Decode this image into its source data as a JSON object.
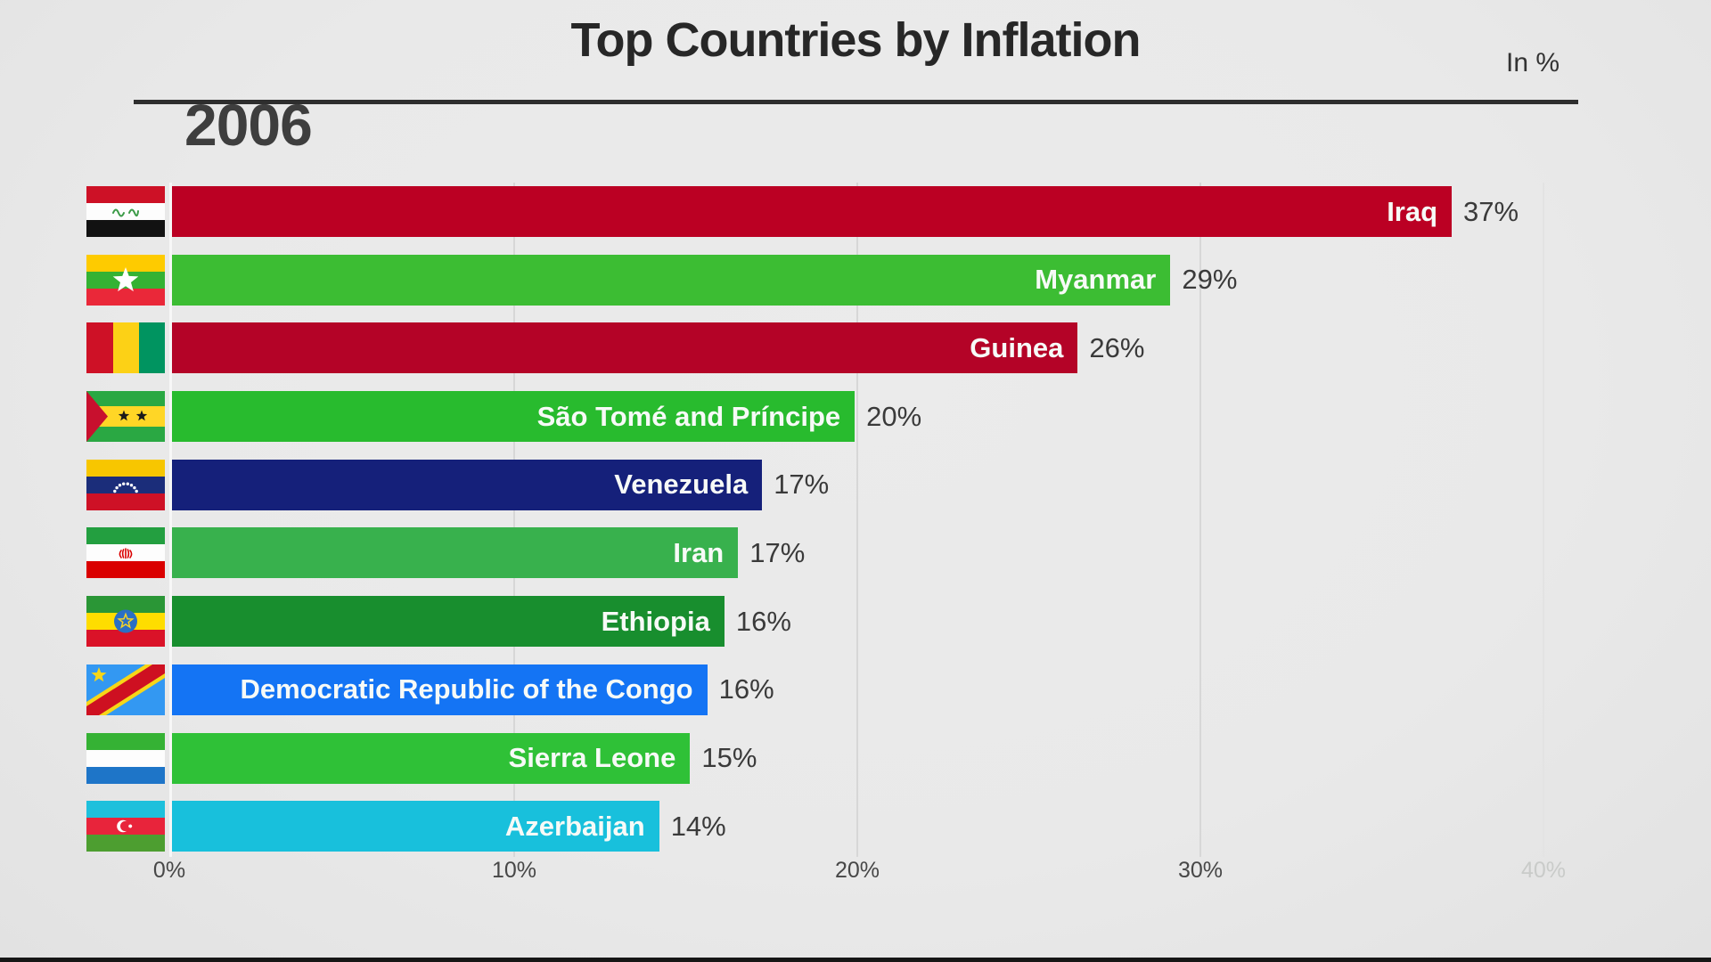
{
  "title": "Top Countries by Inflation",
  "unit_label": "In %",
  "year": "2006",
  "chart_data": {
    "type": "bar",
    "orientation": "horizontal",
    "title": "Top Countries by Inflation",
    "subtitle_year": "2006",
    "unit": "In %",
    "x_axis": {
      "range": [
        0,
        40
      ],
      "grid": true,
      "ticks": [
        {
          "label": "0%",
          "pct": 0,
          "muted": false
        },
        {
          "label": "10%",
          "pct": 10,
          "muted": false
        },
        {
          "label": "20%",
          "pct": 20,
          "muted": false
        },
        {
          "label": "30%",
          "pct": 30,
          "muted": false
        },
        {
          "label": "40%",
          "pct": 40,
          "muted": true
        }
      ]
    },
    "rows": [
      {
        "country": "Iraq",
        "value": 37.3,
        "label": "37%",
        "color": "#bb0023",
        "flag": "iraq"
      },
      {
        "country": "Myanmar",
        "value": 29.1,
        "label": "29%",
        "color": "#3cbd33",
        "flag": "myanmar"
      },
      {
        "country": "Guinea",
        "value": 26.4,
        "label": "26%",
        "color": "#b40327",
        "flag": "guinea"
      },
      {
        "country": "São Tomé and Príncipe",
        "value": 19.9,
        "label": "20%",
        "color": "#28bb2e",
        "flag": "sao-tome-and-principe"
      },
      {
        "country": "Venezuela",
        "value": 17.2,
        "label": "17%",
        "color": "#15207a",
        "flag": "venezuela"
      },
      {
        "country": "Iran",
        "value": 16.5,
        "label": "17%",
        "color": "#38b14d",
        "flag": "iran"
      },
      {
        "country": "Ethiopia",
        "value": 16.1,
        "label": "16%",
        "color": "#188e2e",
        "flag": "ethiopia"
      },
      {
        "country": "Democratic Republic of the Congo",
        "value": 15.6,
        "label": "16%",
        "color": "#1474f4",
        "flag": "democratic-republic-of-the-congo"
      },
      {
        "country": "Sierra Leone",
        "value": 15.1,
        "label": "15%",
        "color": "#2fc137",
        "flag": "sierra-leone"
      },
      {
        "country": "Azerbaijan",
        "value": 14.2,
        "label": "14%",
        "color": "#18c0dc",
        "flag": "azerbaijan"
      }
    ]
  }
}
